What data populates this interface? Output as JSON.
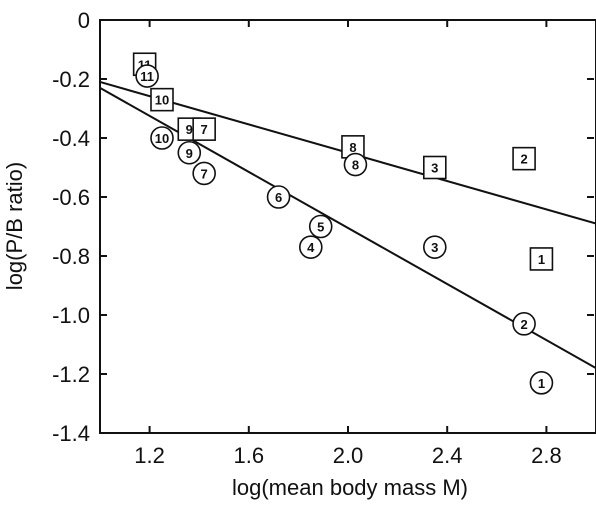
{
  "chart_data": {
    "type": "scatter",
    "xlabel": "log(mean body mass M)",
    "ylabel": "log(P/B ratio)",
    "xlim": [
      1.0,
      3.0
    ],
    "ylim": [
      -1.4,
      0.0
    ],
    "x_ticks": [
      1.2,
      1.6,
      2.0,
      2.4,
      2.8
    ],
    "x_tick_labels": [
      "1.2",
      "1.6",
      "2.0",
      "2.4",
      "2.8"
    ],
    "y_ticks": [
      0.0,
      -0.2,
      -0.4,
      -0.6,
      -0.8,
      -1.0,
      -1.2,
      -1.4
    ],
    "y_tick_labels": [
      "0",
      "-0.2",
      "-0.4",
      "-0.6",
      "-0.8",
      "-1.0",
      "-1.2",
      "-1.4"
    ],
    "grid": false,
    "legend": "none",
    "series": [
      {
        "marker": "square",
        "points": [
          {
            "label": "11",
            "x": 1.18,
            "y": -0.15
          },
          {
            "label": "10",
            "x": 1.25,
            "y": -0.27
          },
          {
            "label": "9",
            "x": 1.36,
            "y": -0.37
          },
          {
            "label": "7",
            "x": 1.42,
            "y": -0.37
          },
          {
            "label": "8",
            "x": 2.02,
            "y": -0.43
          },
          {
            "label": "3",
            "x": 2.35,
            "y": -0.5
          },
          {
            "label": "2",
            "x": 2.71,
            "y": -0.47
          },
          {
            "label": "1",
            "x": 2.78,
            "y": -0.81
          }
        ],
        "fit_line": [
          [
            1.0,
            -0.21
          ],
          [
            3.0,
            -0.69
          ]
        ]
      },
      {
        "marker": "circle",
        "points": [
          {
            "label": "11",
            "x": 1.19,
            "y": -0.19
          },
          {
            "label": "10",
            "x": 1.25,
            "y": -0.4
          },
          {
            "label": "9",
            "x": 1.36,
            "y": -0.45
          },
          {
            "label": "7",
            "x": 1.42,
            "y": -0.52
          },
          {
            "label": "6",
            "x": 1.72,
            "y": -0.6
          },
          {
            "label": "5",
            "x": 1.89,
            "y": -0.7
          },
          {
            "label": "4",
            "x": 1.85,
            "y": -0.77
          },
          {
            "label": "8",
            "x": 2.03,
            "y": -0.49
          },
          {
            "label": "3",
            "x": 2.35,
            "y": -0.77
          },
          {
            "label": "2",
            "x": 2.71,
            "y": -1.03
          },
          {
            "label": "1",
            "x": 2.78,
            "y": -1.23
          }
        ],
        "fit_line": [
          [
            1.0,
            -0.23
          ],
          [
            3.0,
            -1.18
          ]
        ]
      }
    ]
  }
}
